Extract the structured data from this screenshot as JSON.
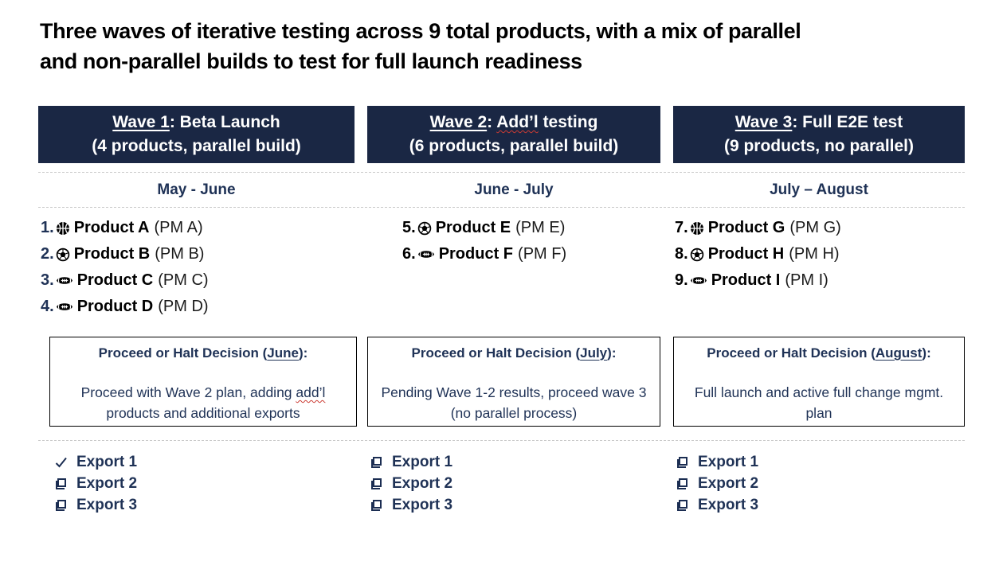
{
  "title": {
    "line1": "Three waves of iterative testing across 9 total products, with a mix of parallel",
    "line2": "and non-parallel builds to test for full launch readiness"
  },
  "colors": {
    "header_bar_navy": "#1a2744",
    "navy_text": "#1f3256",
    "squiggle_red": "#cc3b33",
    "divider_gray": "#c9c9c9",
    "header_text_white": "#ffffff"
  },
  "waves": [
    {
      "header": {
        "underline": "Wave 1",
        "after_underline": ": Beta Launch",
        "squiggle": "",
        "after_squiggle": "",
        "line2": "(4 products, parallel build)"
      },
      "date_range": "May - June",
      "products": [
        {
          "num": "1.",
          "icon": "basketball-icon",
          "name": "Product A",
          "pm": "(PM A)"
        },
        {
          "num": "2.",
          "icon": "soccer-ball-icon",
          "name": "Product B",
          "pm": "(PM B)"
        },
        {
          "num": "3.",
          "icon": "football-icon",
          "name": "Product C",
          "pm": "(PM C)"
        },
        {
          "num": "4.",
          "icon": "football-icon",
          "name": "Product D",
          "pm": "(PM D)"
        }
      ],
      "decision": {
        "title_pre": "Proceed or Halt Decision (",
        "title_month": "June",
        "title_post": "):",
        "body_pre": "Proceed with Wave 2 plan, adding ",
        "body_squiggle": "add’l",
        "body_post": " products and additional exports"
      },
      "exports": [
        {
          "icon": "checkmark-icon",
          "label": "Export 1",
          "checked": true
        },
        {
          "icon": "checkbox-icon",
          "label": "Export 2",
          "checked": false
        },
        {
          "icon": "checkbox-icon",
          "label": "Export 3",
          "checked": false
        }
      ]
    },
    {
      "header": {
        "underline": "Wave 2",
        "after_underline": ": ",
        "squiggle": "Add’l",
        "after_squiggle": " testing",
        "line2": "(6 products, parallel build)"
      },
      "date_range": "June - July",
      "products": [
        {
          "num": "5.",
          "icon": "soccer-ball-icon",
          "name": "Product E",
          "pm": "(PM E)"
        },
        {
          "num": "6.",
          "icon": "football-icon",
          "name": "Product F",
          "pm": "(PM F)"
        }
      ],
      "decision": {
        "title_pre": "Proceed or Halt Decision (",
        "title_month": "July",
        "title_post": "):",
        "body_pre": "Pending Wave 1-2 results, proceed wave 3 (no parallel process)",
        "body_squiggle": "",
        "body_post": ""
      },
      "exports": [
        {
          "icon": "checkbox-icon",
          "label": "Export 1",
          "checked": false
        },
        {
          "icon": "checkbox-icon",
          "label": "Export 2",
          "checked": false
        },
        {
          "icon": "checkbox-icon",
          "label": "Export 3",
          "checked": false
        }
      ]
    },
    {
      "header": {
        "underline": "Wave 3",
        "after_underline": ": Full E2E test",
        "squiggle": "",
        "after_squiggle": "",
        "line2": "(9 products, no parallel)"
      },
      "date_range": "July – August",
      "products": [
        {
          "num": "7.",
          "icon": "basketball-icon",
          "name": "Product G",
          "pm": "(PM G)"
        },
        {
          "num": "8.",
          "icon": "soccer-ball-icon",
          "name": "Product H",
          "pm": "(PM H)"
        },
        {
          "num": "9.",
          "icon": "football-icon",
          "name": "Product I",
          "pm": "(PM I)"
        }
      ],
      "decision": {
        "title_pre": "Proceed or Halt Decision (",
        "title_month": "August",
        "title_post": "):",
        "body_pre": "Full launch and active full change mgmt. plan",
        "body_squiggle": "",
        "body_post": ""
      },
      "exports": [
        {
          "icon": "checkbox-icon",
          "label": "Export 1",
          "checked": false
        },
        {
          "icon": "checkbox-icon",
          "label": "Export 2",
          "checked": false
        },
        {
          "icon": "checkbox-icon",
          "label": "Export 3",
          "checked": false
        }
      ]
    }
  ]
}
